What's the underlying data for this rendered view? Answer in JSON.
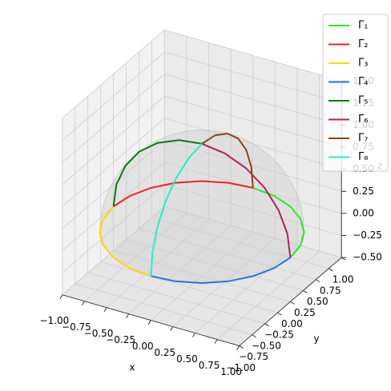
{
  "chart_data": {
    "type": "line3d",
    "xlabel": "x",
    "ylabel": "y",
    "zlabel": "z",
    "xlim": [
      -1,
      1
    ],
    "ylim": [
      -1,
      1
    ],
    "zlim": [
      -0.5,
      1.5
    ],
    "xticks": [
      {
        "value": -1,
        "label": "−1.00"
      },
      {
        "value": -0.75,
        "label": "−0.75"
      },
      {
        "value": -0.5,
        "label": "−0.50"
      },
      {
        "value": -0.25,
        "label": "−0.25"
      },
      {
        "value": 0,
        "label": "0.00"
      },
      {
        "value": 0.25,
        "label": "0.25"
      },
      {
        "value": 0.5,
        "label": "0.50"
      },
      {
        "value": 0.75,
        "label": "0.75"
      },
      {
        "value": 1,
        "label": "1.00"
      }
    ],
    "yticks": [
      {
        "value": -1,
        "label": "−1.00"
      },
      {
        "value": -0.75,
        "label": "−0.75"
      },
      {
        "value": -0.5,
        "label": "−0.50"
      },
      {
        "value": -0.25,
        "label": "−0.25"
      },
      {
        "value": 0,
        "label": "0.00"
      },
      {
        "value": 0.25,
        "label": "0.25"
      },
      {
        "value": 0.5,
        "label": "0.50"
      },
      {
        "value": 0.75,
        "label": "0.75"
      },
      {
        "value": 1,
        "label": "1.00"
      }
    ],
    "zticks": [
      {
        "value": -0.5,
        "label": "−0.50"
      },
      {
        "value": -0.25,
        "label": "−0.25"
      },
      {
        "value": 0,
        "label": "0.00"
      },
      {
        "value": 0.25,
        "label": "0.25"
      },
      {
        "value": 0.5,
        "label": "0.50"
      },
      {
        "value": 0.75,
        "label": "0.75"
      },
      {
        "value": 1,
        "label": "1.00"
      },
      {
        "value": 1.25,
        "label": "1.25"
      },
      {
        "value": 1.5,
        "label": "1.50"
      }
    ],
    "grid": true,
    "legend": "upper right",
    "series": [
      {
        "name": "Γ₁",
        "color": "#22ee22",
        "x": [
          1,
          0.966,
          0.866,
          0.707,
          0.5,
          0.259,
          0
        ],
        "y": [
          0,
          0.259,
          0.5,
          0.707,
          0.866,
          0.966,
          1
        ],
        "z": [
          0,
          0,
          0,
          0,
          0,
          0,
          0
        ]
      },
      {
        "name": "Γ₂",
        "color": "#ee2222",
        "x": [
          0,
          -0.259,
          -0.5,
          -0.707,
          -0.866,
          -0.966,
          -1
        ],
        "y": [
          1,
          0.966,
          0.866,
          0.707,
          0.5,
          0.259,
          0
        ],
        "z": [
          0,
          0,
          0,
          0,
          0,
          0,
          0
        ]
      },
      {
        "name": "Γ₃",
        "color": "#ffd700",
        "x": [
          -1,
          -0.966,
          -0.866,
          -0.707,
          -0.5,
          -0.259,
          0
        ],
        "y": [
          0,
          -0.259,
          -0.5,
          -0.707,
          -0.866,
          -0.966,
          -1
        ],
        "z": [
          0,
          0,
          0,
          0,
          0,
          0,
          0
        ]
      },
      {
        "name": "Γ₄",
        "color": "#1e78e0",
        "x": [
          0,
          0.259,
          0.5,
          0.707,
          0.866,
          0.966,
          1
        ],
        "y": [
          -1,
          -0.966,
          -0.866,
          -0.707,
          -0.5,
          -0.259,
          0
        ],
        "z": [
          0,
          0,
          0,
          0,
          0,
          0,
          0
        ]
      },
      {
        "name": "Γ₅",
        "color": "#0a7a10",
        "x": [
          -1,
          -0.966,
          -0.866,
          -0.707,
          -0.5,
          -0.259,
          0
        ],
        "y": [
          0,
          0,
          0,
          0,
          0,
          0,
          0
        ],
        "z": [
          0,
          0.259,
          0.5,
          0.707,
          0.866,
          0.966,
          1
        ]
      },
      {
        "name": "Γ₆",
        "color": "#b0215f",
        "x": [
          0,
          0.259,
          0.5,
          0.707,
          0.866,
          0.966,
          1
        ],
        "y": [
          0,
          0,
          0,
          0,
          0,
          0,
          0
        ],
        "z": [
          1,
          0.966,
          0.866,
          0.707,
          0.5,
          0.259,
          0
        ]
      },
      {
        "name": "Γ₇",
        "color": "#8b4513",
        "x": [
          0,
          0,
          0,
          0,
          0,
          0,
          0
        ],
        "y": [
          0,
          0.259,
          0.5,
          0.707,
          0.866,
          0.966,
          1
        ],
        "z": [
          1,
          0.966,
          0.866,
          0.707,
          0.5,
          0.259,
          0
        ]
      },
      {
        "name": "Γ₈",
        "color": "#22f0c8",
        "x": [
          0,
          0,
          0,
          0,
          0,
          0,
          0
        ],
        "y": [
          -1,
          -0.966,
          -0.866,
          -0.707,
          -0.5,
          -0.259,
          0
        ],
        "z": [
          0,
          0.259,
          0.5,
          0.707,
          0.866,
          0.966,
          1
        ]
      }
    ]
  }
}
